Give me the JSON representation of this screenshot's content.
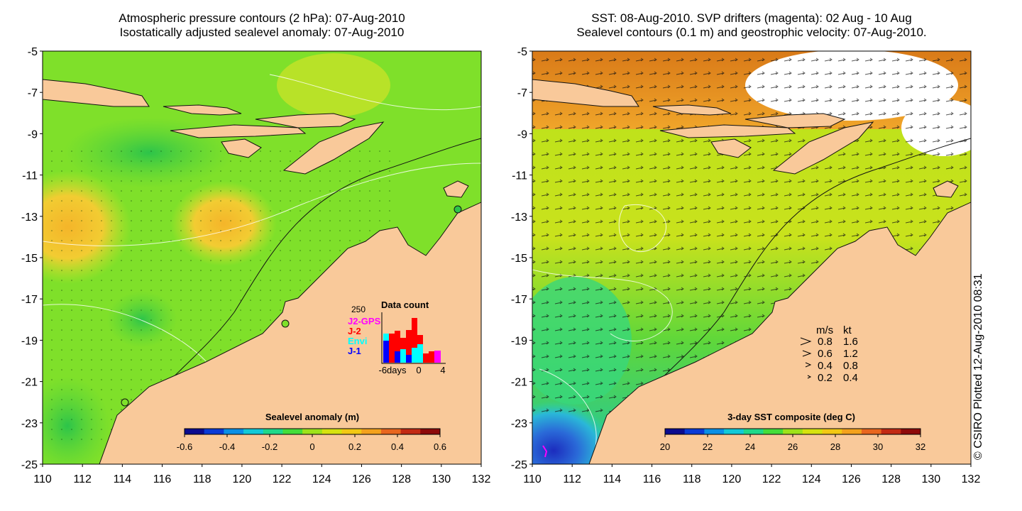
{
  "left_panel": {
    "title_line1": "Atmospheric pressure contours (2 hPa): 07-Aug-2010",
    "title_line2": "Isostatically adjusted sealevel anomaly: 07-Aug-2010",
    "colorbar": {
      "label": "Sealevel anomaly (m)",
      "ticks": [
        "-0.6",
        "-0.4",
        "-0.2",
        "0",
        "0.2",
        "0.4",
        "0.6"
      ],
      "range": [
        -0.6,
        0.6
      ],
      "palette": [
        "#0b0b8f",
        "#0a3ad6",
        "#0a8fe6",
        "#12c9d8",
        "#1fd88a",
        "#44dd3a",
        "#9ee21a",
        "#d6e20f",
        "#f2c814",
        "#f3a11c",
        "#e8661e",
        "#c22a14",
        "#8e0a0a"
      ]
    },
    "inset": {
      "title": "Data count",
      "ymax_label": "250",
      "legend": [
        {
          "name": "J2-GPS",
          "color": "#ff00ff"
        },
        {
          "name": "J-2",
          "color": "#ff0000"
        },
        {
          "name": "Envi",
          "color": "#00ffff"
        },
        {
          "name": "J-1",
          "color": "#0000ff"
        }
      ],
      "x_labels": [
        "-6days",
        "0",
        "4"
      ]
    }
  },
  "right_panel": {
    "title_line1": "SST: 08-Aug-2010. SVP drifters (magenta): 02 Aug - 10 Aug",
    "title_line2": "Sealevel contours (0.1 m) and geostrophic velocity: 07-Aug-2010.",
    "colorbar": {
      "label": "3-day SST composite (deg C)",
      "ticks": [
        "20",
        "22",
        "24",
        "26",
        "28",
        "30",
        "32"
      ],
      "range": [
        20,
        32
      ],
      "palette": [
        "#0b0b8f",
        "#0a3ad6",
        "#0a8fe6",
        "#12c9d8",
        "#1fd88a",
        "#44dd3a",
        "#9ee21a",
        "#d6e20f",
        "#f2c814",
        "#f3a11c",
        "#e8661e",
        "#c22a14",
        "#8e0a0a"
      ]
    },
    "velocity_legend": {
      "headers": [
        "m/s",
        "kt"
      ],
      "rows": [
        {
          "ms": "0.8",
          "kt": "1.6"
        },
        {
          "ms": "0.6",
          "kt": "1.2"
        },
        {
          "ms": "0.4",
          "kt": "0.8"
        },
        {
          "ms": "0.2",
          "kt": "0.4"
        }
      ]
    }
  },
  "axes": {
    "lat_labels": [
      "-5",
      "-7",
      "-9",
      "-11",
      "-13",
      "-15",
      "-17",
      "-19",
      "-21",
      "-23",
      "-25"
    ],
    "lon_labels": [
      "110",
      "112",
      "114",
      "116",
      "118",
      "120",
      "122",
      "124",
      "126",
      "128",
      "130",
      "132"
    ],
    "lon_range": [
      110,
      132
    ],
    "lat_range": [
      -25,
      -5
    ]
  },
  "colors": {
    "land": "#f9c99a",
    "sea_base_left": "#7fe02a",
    "sea_base_right": "#b9e21a",
    "no_data": "#ffffff"
  },
  "copyright": "© CSIRO Plotted 12-Aug-2010 08:31"
}
